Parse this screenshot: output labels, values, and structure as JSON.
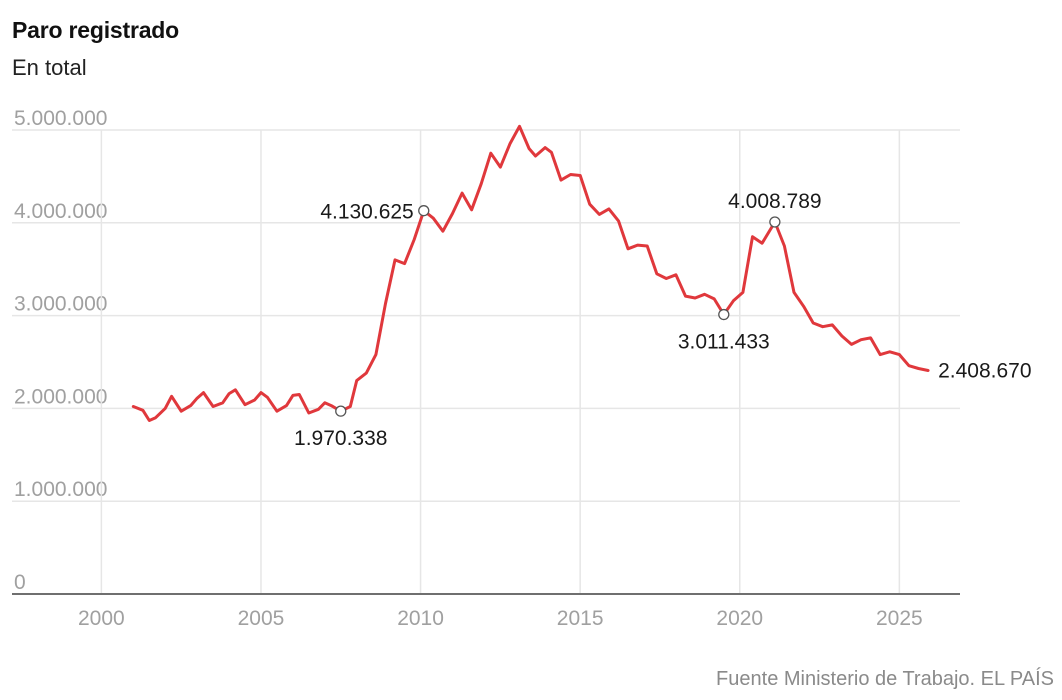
{
  "header": {
    "title": "Paro registrado",
    "subtitle": "En total"
  },
  "footer": {
    "source": "Fuente Ministerio de Trabajo. EL PAÍS"
  },
  "colors": {
    "line": "#e0383c",
    "grid": "#e6e6e6",
    "axis": "#6f6f6f",
    "tick_text": "#a0a0a0",
    "annotation_text": "#1a1a1a"
  },
  "chart_data": {
    "type": "line",
    "title": "Paro registrado",
    "subtitle": "En total",
    "xlabel": "",
    "ylabel": "",
    "xlim": [
      1997.2,
      2026.9
    ],
    "ylim": [
      0,
      5000000
    ],
    "y_ticks": [
      0,
      1000000,
      2000000,
      3000000,
      4000000,
      5000000
    ],
    "y_tick_labels": [
      "0",
      "1.000.000",
      "2.000.000",
      "3.000.000",
      "4.000.000",
      "5.000.000"
    ],
    "x_ticks": [
      2000,
      2005,
      2010,
      2015,
      2020,
      2025
    ],
    "x_tick_labels": [
      "2000",
      "2005",
      "2010",
      "2015",
      "2020",
      "2025"
    ],
    "grid": true,
    "series": [
      {
        "values": [
          [
            2001.0,
            2020000
          ],
          [
            2001.3,
            1980000
          ],
          [
            2001.5,
            1870000
          ],
          [
            2001.7,
            1900000
          ],
          [
            2002.0,
            2000000
          ],
          [
            2002.2,
            2130000
          ],
          [
            2002.5,
            1970000
          ],
          [
            2002.8,
            2030000
          ],
          [
            2003.0,
            2110000
          ],
          [
            2003.2,
            2170000
          ],
          [
            2003.5,
            2020000
          ],
          [
            2003.8,
            2060000
          ],
          [
            2004.0,
            2160000
          ],
          [
            2004.2,
            2200000
          ],
          [
            2004.5,
            2040000
          ],
          [
            2004.8,
            2090000
          ],
          [
            2005.0,
            2170000
          ],
          [
            2005.2,
            2120000
          ],
          [
            2005.5,
            1970000
          ],
          [
            2005.8,
            2030000
          ],
          [
            2006.0,
            2140000
          ],
          [
            2006.2,
            2150000
          ],
          [
            2006.5,
            1950000
          ],
          [
            2006.8,
            1990000
          ],
          [
            2007.0,
            2060000
          ],
          [
            2007.2,
            2030000
          ],
          [
            2007.5,
            1970338
          ],
          [
            2007.8,
            2020000
          ],
          [
            2008.0,
            2300000
          ],
          [
            2008.3,
            2380000
          ],
          [
            2008.6,
            2580000
          ],
          [
            2008.9,
            3130000
          ],
          [
            2009.2,
            3600000
          ],
          [
            2009.5,
            3560000
          ],
          [
            2009.8,
            3820000
          ],
          [
            2010.1,
            4130625
          ],
          [
            2010.4,
            4050000
          ],
          [
            2010.7,
            3910000
          ],
          [
            2011.0,
            4100000
          ],
          [
            2011.3,
            4320000
          ],
          [
            2011.6,
            4140000
          ],
          [
            2011.9,
            4420000
          ],
          [
            2012.2,
            4750000
          ],
          [
            2012.5,
            4600000
          ],
          [
            2012.8,
            4850000
          ],
          [
            2013.1,
            5040000
          ],
          [
            2013.4,
            4800000
          ],
          [
            2013.6,
            4720000
          ],
          [
            2013.9,
            4810000
          ],
          [
            2014.1,
            4760000
          ],
          [
            2014.4,
            4460000
          ],
          [
            2014.7,
            4520000
          ],
          [
            2015.0,
            4510000
          ],
          [
            2015.3,
            4200000
          ],
          [
            2015.6,
            4090000
          ],
          [
            2015.9,
            4150000
          ],
          [
            2016.2,
            4020000
          ],
          [
            2016.5,
            3720000
          ],
          [
            2016.8,
            3760000
          ],
          [
            2017.1,
            3750000
          ],
          [
            2017.4,
            3450000
          ],
          [
            2017.7,
            3400000
          ],
          [
            2018.0,
            3440000
          ],
          [
            2018.3,
            3210000
          ],
          [
            2018.6,
            3190000
          ],
          [
            2018.9,
            3230000
          ],
          [
            2019.2,
            3180000
          ],
          [
            2019.5,
            3011433
          ],
          [
            2019.8,
            3160000
          ],
          [
            2020.1,
            3250000
          ],
          [
            2020.4,
            3850000
          ],
          [
            2020.7,
            3780000
          ],
          [
            2021.1,
            4008789
          ],
          [
            2021.4,
            3750000
          ],
          [
            2021.7,
            3250000
          ],
          [
            2022.0,
            3100000
          ],
          [
            2022.3,
            2920000
          ],
          [
            2022.6,
            2880000
          ],
          [
            2022.9,
            2900000
          ],
          [
            2023.2,
            2780000
          ],
          [
            2023.5,
            2690000
          ],
          [
            2023.8,
            2740000
          ],
          [
            2024.1,
            2760000
          ],
          [
            2024.4,
            2580000
          ],
          [
            2024.7,
            2610000
          ],
          [
            2025.0,
            2580000
          ],
          [
            2025.3,
            2460000
          ],
          [
            2025.6,
            2430000
          ],
          [
            2025.9,
            2408670
          ]
        ]
      }
    ],
    "annotations": [
      {
        "x": 2007.5,
        "y": 1970338,
        "label": "1.970.338",
        "marker": true,
        "position": "below"
      },
      {
        "x": 2010.1,
        "y": 4130625,
        "label": "4.130.625",
        "marker": true,
        "position": "left"
      },
      {
        "x": 2019.5,
        "y": 3011433,
        "label": "3.011.433",
        "marker": true,
        "position": "below"
      },
      {
        "x": 2021.1,
        "y": 4008789,
        "label": "4.008.789",
        "marker": true,
        "position": "above"
      },
      {
        "x": 2025.9,
        "y": 2408670,
        "label": "2.408.670",
        "marker": false,
        "position": "right"
      }
    ]
  }
}
